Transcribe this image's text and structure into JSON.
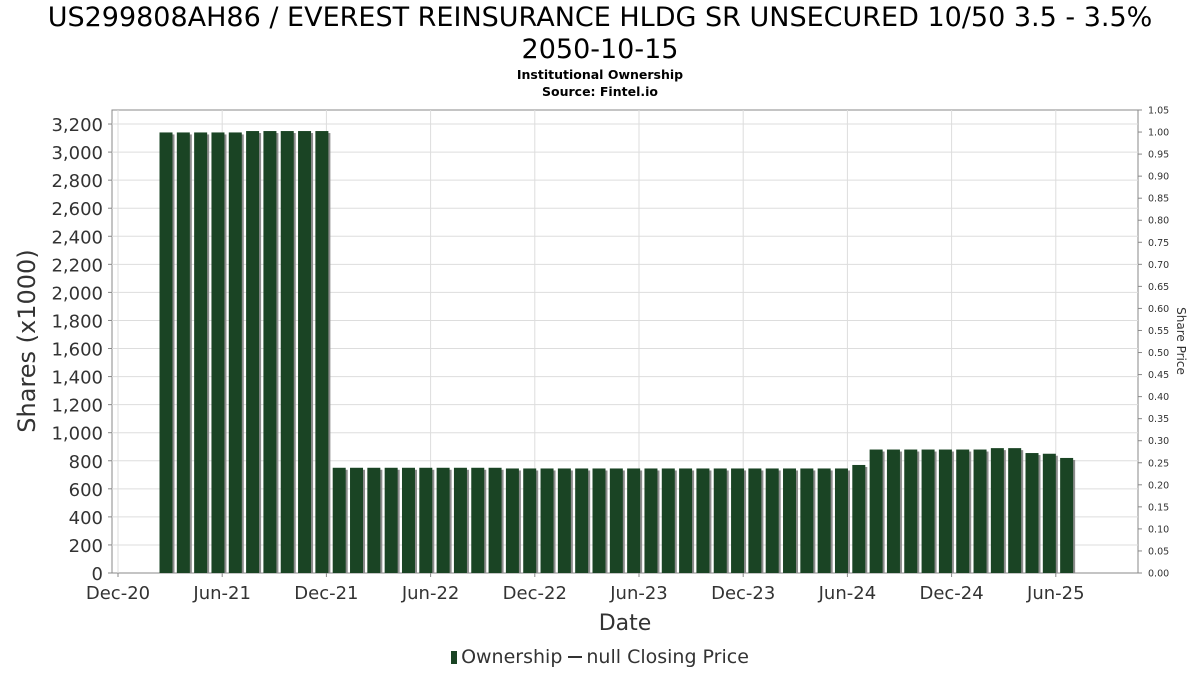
{
  "title_line1": "US299808AH86 / EVEREST REINSURANCE HLDG SR UNSECURED 10/50 3.5 - 3.5%",
  "title_line2": "2050-10-15",
  "subtitle": "Institutional Ownership",
  "source": "Source: Fintel.io",
  "legend": {
    "ownership": "Ownership",
    "price": "null Closing Price"
  },
  "colors": {
    "bar": "#1a4424",
    "bar_shadow": "#8c8c8c",
    "grid": "#dddddd",
    "axis": "#888888"
  },
  "chart_data": {
    "type": "bar",
    "xlabel": "Date",
    "ylabel": "Shares (x1000)",
    "y2label": "Share Price",
    "ylim": [
      0,
      3300
    ],
    "y2lim": [
      0,
      1.05
    ],
    "y_ticks": [
      "0",
      "200",
      "400",
      "600",
      "800",
      "1,000",
      "1,200",
      "1,400",
      "1,600",
      "1,800",
      "2,000",
      "2,200",
      "2,400",
      "2,600",
      "2,800",
      "3,000",
      "3,200"
    ],
    "y2_ticks": [
      "0.00",
      "0.05",
      "0.10",
      "0.15",
      "0.20",
      "0.25",
      "0.30",
      "0.35",
      "0.40",
      "0.45",
      "0.50",
      "0.55",
      "0.60",
      "0.65",
      "0.70",
      "0.75",
      "0.80",
      "0.85",
      "0.90",
      "0.95",
      "1.00",
      "1.05"
    ],
    "x_ticks": [
      "Dec-20",
      "Jun-21",
      "Dec-21",
      "Jun-22",
      "Dec-22",
      "Jun-23",
      "Dec-23",
      "Jun-24",
      "Dec-24",
      "Jun-25"
    ],
    "grid": true,
    "legend_position": "bottom",
    "series": [
      {
        "name": "Ownership",
        "values": [
          3140,
          3140,
          3140,
          3140,
          3140,
          3150,
          3150,
          3150,
          3150,
          3150,
          750,
          750,
          750,
          750,
          750,
          750,
          750,
          750,
          750,
          750,
          745,
          745,
          745,
          745,
          745,
          745,
          745,
          745,
          745,
          745,
          745,
          745,
          745,
          745,
          745,
          745,
          745,
          745,
          745,
          745,
          770,
          880,
          880,
          880,
          880,
          880,
          880,
          880,
          890,
          890,
          855,
          850,
          820
        ]
      }
    ]
  }
}
